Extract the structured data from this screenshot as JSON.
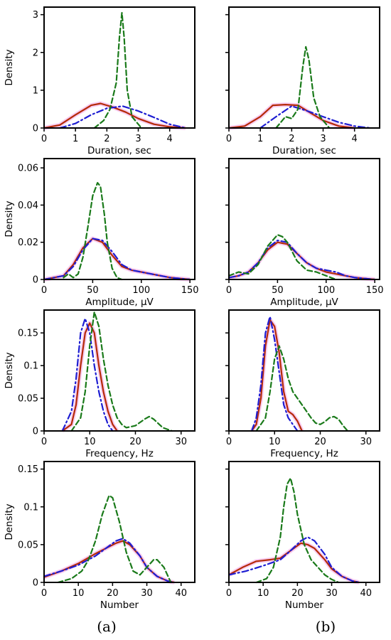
{
  "colors": {
    "series_a": "#d40000",
    "series_b": "#0000d0",
    "series_c": "#1a7a1a",
    "halo": "#f2a2e6"
  },
  "panel_labels": [
    {
      "id": "a",
      "text": "(a)"
    },
    {
      "id": "b",
      "text": "(b)"
    }
  ],
  "chart_data": [
    {
      "type": "line",
      "panel": "a",
      "row": 1,
      "xlabel": "Duration, sec",
      "ylabel": "Density",
      "xlim": [
        0,
        4.8
      ],
      "ylim": [
        0,
        3.2
      ],
      "xticks": [
        0,
        1,
        2,
        3,
        4
      ],
      "yticks": [
        0,
        1,
        2,
        3
      ],
      "series": [
        {
          "style": "solid",
          "color": "#b52a08",
          "x": [
            0,
            0.5,
            1,
            1.5,
            1.8,
            2.2,
            2.6,
            3,
            3.5,
            4,
            4.5
          ],
          "y": [
            0,
            0.08,
            0.35,
            0.6,
            0.65,
            0.55,
            0.42,
            0.25,
            0.1,
            0.03,
            0
          ]
        },
        {
          "style": "dashdot",
          "color": "#1e1ed2",
          "x": [
            0.5,
            1,
            1.5,
            2,
            2.5,
            3,
            3.5,
            4,
            4.5
          ],
          "y": [
            0,
            0.12,
            0.35,
            0.52,
            0.58,
            0.45,
            0.28,
            0.1,
            0
          ]
        },
        {
          "style": "dashed",
          "color": "#1a7a1a",
          "x": [
            1.6,
            1.9,
            2.1,
            2.3,
            2.4,
            2.48,
            2.55,
            2.65,
            2.8,
            3.1
          ],
          "y": [
            0,
            0.2,
            0.5,
            1.2,
            2.4,
            3.05,
            2.4,
            1.0,
            0.3,
            0
          ]
        }
      ]
    },
    {
      "type": "line",
      "panel": "b",
      "row": 1,
      "xlabel": "Duration, sec",
      "ylabel": "",
      "xlim": [
        0,
        4.8
      ],
      "ylim": [
        0,
        3.2
      ],
      "xticks": [
        0,
        1,
        2,
        3,
        4
      ],
      "yticks": [
        0,
        1,
        2,
        3
      ],
      "series": [
        {
          "style": "solid",
          "color": "#b52a08",
          "x": [
            0,
            0.5,
            1,
            1.4,
            1.8,
            2.2,
            2.6,
            3,
            3.5,
            4
          ],
          "y": [
            0,
            0.05,
            0.3,
            0.6,
            0.62,
            0.6,
            0.4,
            0.2,
            0.05,
            0
          ]
        },
        {
          "style": "dashdot",
          "color": "#1e1ed2",
          "x": [
            1,
            1.5,
            2,
            2.5,
            3,
            3.5,
            4,
            4.5
          ],
          "y": [
            0,
            0.3,
            0.58,
            0.45,
            0.3,
            0.15,
            0.05,
            0
          ]
        },
        {
          "style": "dashed",
          "color": "#1a7a1a",
          "x": [
            1.5,
            1.8,
            2,
            2.2,
            2.35,
            2.45,
            2.55,
            2.7,
            2.9,
            3.2
          ],
          "y": [
            0,
            0.3,
            0.25,
            0.5,
            1.6,
            2.15,
            1.8,
            0.8,
            0.3,
            0
          ]
        }
      ]
    },
    {
      "type": "line",
      "panel": "a",
      "row": 2,
      "xlabel": "Amplitude, μV",
      "ylabel": "Density",
      "xlim": [
        0,
        155
      ],
      "ylim": [
        0,
        0.065
      ],
      "xticks": [
        0,
        50,
        100,
        150
      ],
      "yticks": [
        0,
        0.02,
        0.04,
        0.06
      ],
      "series": [
        {
          "style": "solid",
          "color": "#b52a08",
          "x": [
            0,
            20,
            30,
            40,
            50,
            60,
            70,
            80,
            90,
            100,
            110,
            120,
            130,
            140,
            150
          ],
          "y": [
            0,
            0.002,
            0.008,
            0.017,
            0.022,
            0.02,
            0.013,
            0.007,
            0.005,
            0.004,
            0.003,
            0.002,
            0.001,
            0.0005,
            0
          ]
        },
        {
          "style": "dashdot",
          "color": "#1e1ed2",
          "x": [
            0,
            20,
            30,
            40,
            50,
            60,
            70,
            80,
            90,
            100,
            110,
            120,
            130,
            140,
            150
          ],
          "y": [
            0,
            0.002,
            0.007,
            0.016,
            0.022,
            0.021,
            0.015,
            0.008,
            0.005,
            0.004,
            0.003,
            0.002,
            0.001,
            0.0005,
            0
          ]
        },
        {
          "style": "dashed",
          "color": "#1a7a1a",
          "x": [
            20,
            25,
            30,
            35,
            40,
            45,
            50,
            55,
            58,
            62,
            65,
            70,
            75,
            80
          ],
          "y": [
            0.001,
            0.003,
            0.001,
            0.003,
            0.012,
            0.028,
            0.045,
            0.052,
            0.05,
            0.035,
            0.02,
            0.006,
            0.001,
            0
          ]
        }
      ]
    },
    {
      "type": "line",
      "panel": "b",
      "row": 2,
      "xlabel": "Amplitude, μV",
      "ylabel": "",
      "xlim": [
        0,
        155
      ],
      "ylim": [
        0,
        0.065
      ],
      "xticks": [
        0,
        50,
        100,
        150
      ],
      "yticks": [
        0,
        0.02,
        0.04,
        0.06
      ],
      "series": [
        {
          "style": "solid",
          "color": "#b52a08",
          "x": [
            0,
            10,
            20,
            30,
            40,
            50,
            60,
            70,
            80,
            90,
            100,
            110,
            120,
            130,
            140,
            150
          ],
          "y": [
            0.001,
            0.002,
            0.004,
            0.009,
            0.016,
            0.02,
            0.019,
            0.014,
            0.009,
            0.006,
            0.004,
            0.003,
            0.002,
            0.001,
            0.0005,
            0
          ]
        },
        {
          "style": "dashdot",
          "color": "#1e1ed2",
          "x": [
            0,
            10,
            20,
            30,
            40,
            50,
            60,
            70,
            80,
            90,
            100,
            110,
            120,
            130,
            140,
            150
          ],
          "y": [
            0.001,
            0.002,
            0.004,
            0.009,
            0.017,
            0.021,
            0.02,
            0.014,
            0.009,
            0.006,
            0.005,
            0.004,
            0.002,
            0.001,
            0.0005,
            0
          ]
        },
        {
          "style": "dashed",
          "color": "#1a7a1a",
          "x": [
            0,
            10,
            20,
            30,
            40,
            50,
            55,
            60,
            70,
            80,
            90,
            100,
            110
          ],
          "y": [
            0.002,
            0.004,
            0.003,
            0.008,
            0.018,
            0.024,
            0.023,
            0.02,
            0.01,
            0.005,
            0.004,
            0.002,
            0
          ]
        }
      ]
    },
    {
      "type": "line",
      "panel": "a",
      "row": 3,
      "xlabel": "Frequency, Hz",
      "ylabel": "Density",
      "xlim": [
        0,
        33
      ],
      "ylim": [
        0,
        0.185
      ],
      "xticks": [
        0,
        10,
        20,
        30
      ],
      "yticks": [
        0,
        0.05,
        0.1,
        0.15
      ],
      "series": [
        {
          "style": "solid",
          "color": "#b52a08",
          "x": [
            4,
            6,
            7,
            8,
            9,
            10,
            11,
            12,
            13,
            14,
            15,
            16
          ],
          "y": [
            0,
            0.01,
            0.04,
            0.1,
            0.15,
            0.165,
            0.15,
            0.1,
            0.06,
            0.03,
            0.01,
            0
          ]
        },
        {
          "style": "dashdot",
          "color": "#1e1ed2",
          "x": [
            4,
            6,
            7,
            8,
            9,
            10,
            11,
            12,
            13,
            14,
            15
          ],
          "y": [
            0,
            0.03,
            0.08,
            0.15,
            0.172,
            0.15,
            0.1,
            0.06,
            0.03,
            0.01,
            0
          ]
        },
        {
          "style": "dashed",
          "color": "#1a7a1a",
          "x": [
            6,
            8,
            9,
            10,
            11,
            12,
            13,
            14,
            15,
            16,
            17,
            18,
            20,
            22,
            23,
            24,
            26,
            28
          ],
          "y": [
            0,
            0.02,
            0.06,
            0.13,
            0.182,
            0.16,
            0.11,
            0.07,
            0.04,
            0.02,
            0.01,
            0.005,
            0.008,
            0.018,
            0.022,
            0.018,
            0.005,
            0
          ]
        }
      ]
    },
    {
      "type": "line",
      "panel": "b",
      "row": 3,
      "xlabel": "Frequency, Hz",
      "ylabel": "",
      "xlim": [
        0,
        33
      ],
      "ylim": [
        0,
        0.185
      ],
      "xticks": [
        0,
        10,
        20,
        30
      ],
      "yticks": [
        0,
        0.05,
        0.1,
        0.15
      ],
      "series": [
        {
          "style": "solid",
          "color": "#b52a08",
          "x": [
            5,
            6,
            7,
            8,
            9,
            10,
            11,
            12,
            13,
            14,
            15,
            16
          ],
          "y": [
            0,
            0.01,
            0.05,
            0.13,
            0.17,
            0.16,
            0.12,
            0.06,
            0.03,
            0.025,
            0.015,
            0
          ]
        },
        {
          "style": "dashdot",
          "color": "#1e1ed2",
          "x": [
            5,
            6,
            7,
            8,
            9,
            10,
            11,
            12,
            13,
            14,
            15
          ],
          "y": [
            0,
            0.02,
            0.07,
            0.15,
            0.175,
            0.14,
            0.09,
            0.04,
            0.02,
            0.01,
            0
          ]
        },
        {
          "style": "dashed",
          "color": "#1a7a1a",
          "x": [
            6,
            8,
            9,
            10,
            11,
            12,
            13,
            14,
            15,
            16,
            17,
            18,
            19,
            20,
            21,
            22,
            23,
            24,
            25,
            26
          ],
          "y": [
            0,
            0.02,
            0.06,
            0.11,
            0.13,
            0.11,
            0.08,
            0.06,
            0.05,
            0.04,
            0.03,
            0.02,
            0.012,
            0.01,
            0.014,
            0.02,
            0.022,
            0.018,
            0.008,
            0
          ]
        }
      ]
    },
    {
      "type": "line",
      "panel": "a",
      "row": 4,
      "xlabel": "Number",
      "ylabel": "Density",
      "xlim": [
        0,
        44
      ],
      "ylim": [
        0,
        0.16
      ],
      "xticks": [
        0,
        10,
        20,
        30,
        40
      ],
      "yticks": [
        0,
        0.05,
        0.1,
        0.15
      ],
      "series": [
        {
          "style": "solid",
          "color": "#b52a08",
          "x": [
            0,
            5,
            10,
            15,
            18,
            21,
            23,
            25,
            28,
            30,
            33,
            36,
            38
          ],
          "y": [
            0.007,
            0.015,
            0.025,
            0.038,
            0.045,
            0.052,
            0.055,
            0.05,
            0.035,
            0.02,
            0.008,
            0.002,
            0
          ]
        },
        {
          "style": "dashdot",
          "color": "#1e1ed2",
          "x": [
            0,
            5,
            10,
            15,
            18,
            21,
            23,
            25,
            28,
            30,
            33,
            36,
            38
          ],
          "y": [
            0.008,
            0.015,
            0.023,
            0.035,
            0.045,
            0.055,
            0.058,
            0.052,
            0.035,
            0.02,
            0.008,
            0.002,
            0
          ]
        },
        {
          "style": "dashed",
          "color": "#1a7a1a",
          "x": [
            4,
            8,
            11,
            13,
            15,
            17,
            19,
            20,
            22,
            24,
            26,
            28,
            30,
            32,
            33,
            35,
            37
          ],
          "y": [
            0,
            0.005,
            0.015,
            0.03,
            0.055,
            0.09,
            0.115,
            0.112,
            0.08,
            0.04,
            0.015,
            0.01,
            0.02,
            0.03,
            0.03,
            0.02,
            0
          ]
        }
      ]
    },
    {
      "type": "line",
      "panel": "b",
      "row": 4,
      "xlabel": "Number",
      "ylabel": "",
      "xlim": [
        0,
        44
      ],
      "ylim": [
        0,
        0.16
      ],
      "xticks": [
        0,
        10,
        20,
        30,
        40
      ],
      "yticks": [
        0,
        0.05,
        0.1,
        0.15
      ],
      "series": [
        {
          "style": "solid",
          "color": "#b52a08",
          "x": [
            0,
            4,
            8,
            12,
            15,
            18,
            21,
            23,
            25,
            28,
            30,
            33,
            36,
            38
          ],
          "y": [
            0.01,
            0.02,
            0.028,
            0.03,
            0.032,
            0.042,
            0.052,
            0.05,
            0.045,
            0.03,
            0.018,
            0.008,
            0.002,
            0
          ]
        },
        {
          "style": "dashdot",
          "color": "#1e1ed2",
          "x": [
            0,
            5,
            10,
            15,
            18,
            21,
            23,
            25,
            28,
            30,
            33,
            36,
            38
          ],
          "y": [
            0.01,
            0.015,
            0.022,
            0.03,
            0.042,
            0.055,
            0.06,
            0.055,
            0.037,
            0.02,
            0.008,
            0.002,
            0
          ]
        },
        {
          "style": "dashed",
          "color": "#1a7a1a",
          "x": [
            8,
            11,
            13,
            15,
            16,
            17,
            18,
            19,
            20,
            22,
            24,
            26,
            28,
            30,
            32
          ],
          "y": [
            0,
            0.005,
            0.02,
            0.06,
            0.1,
            0.13,
            0.138,
            0.12,
            0.09,
            0.05,
            0.03,
            0.02,
            0.01,
            0.004,
            0
          ]
        }
      ]
    }
  ]
}
